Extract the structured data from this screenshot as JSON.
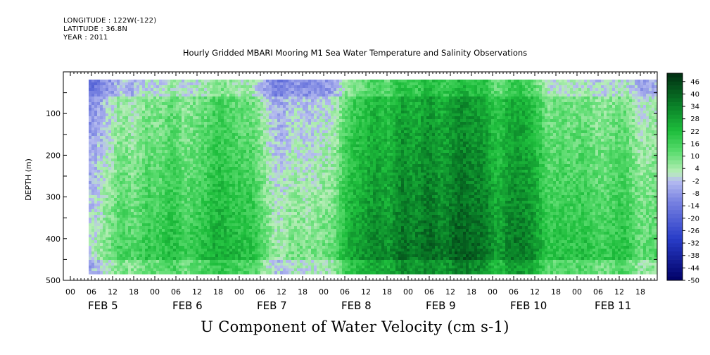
{
  "header": {
    "longitude": "LONGITUDE : 122W(-122)",
    "latitude": "LATITUDE : 36.8N",
    "year": "YEAR : 2011"
  },
  "chart_data": {
    "type": "heatmap",
    "title": "Hourly Gridded MBARI Mooring M1 Sea Water Temperature and Salinity Observations",
    "xlabel": "U Component of Water Velocity (cm s-1)",
    "ylabel": "DEPTH (m)",
    "ylim": [
      500,
      0
    ],
    "y_ticks": [
      100,
      200,
      300,
      400,
      500
    ],
    "x_hour_ticks": [
      "00",
      "06",
      "12",
      "18",
      "00",
      "06",
      "12",
      "18",
      "00",
      "06",
      "12",
      "18",
      "00",
      "06",
      "12",
      "18",
      "00",
      "06",
      "12",
      "18",
      "00",
      "06",
      "12",
      "18",
      "00",
      "06",
      "12",
      "18"
    ],
    "x_day_labels": [
      "FEB  5",
      "FEB  6",
      "FEB  7",
      "FEB  8",
      "FEB  9",
      "FEB 10",
      "FEB 11"
    ],
    "colorbar": {
      "min": -50,
      "max": 50,
      "step": 2,
      "labels": [
        46,
        40,
        34,
        28,
        22,
        16,
        10,
        4,
        -2,
        -8,
        -14,
        -20,
        -26,
        -32,
        -38,
        -44,
        -50
      ]
    },
    "colors": {
      "negative_strong": "#000066",
      "negative": "#4a5ad8",
      "neutral_neg": "#b6bcf0",
      "neutral_pos": "#b8eeb8",
      "positive": "#22cc44",
      "positive_strong": "#003a14"
    }
  }
}
